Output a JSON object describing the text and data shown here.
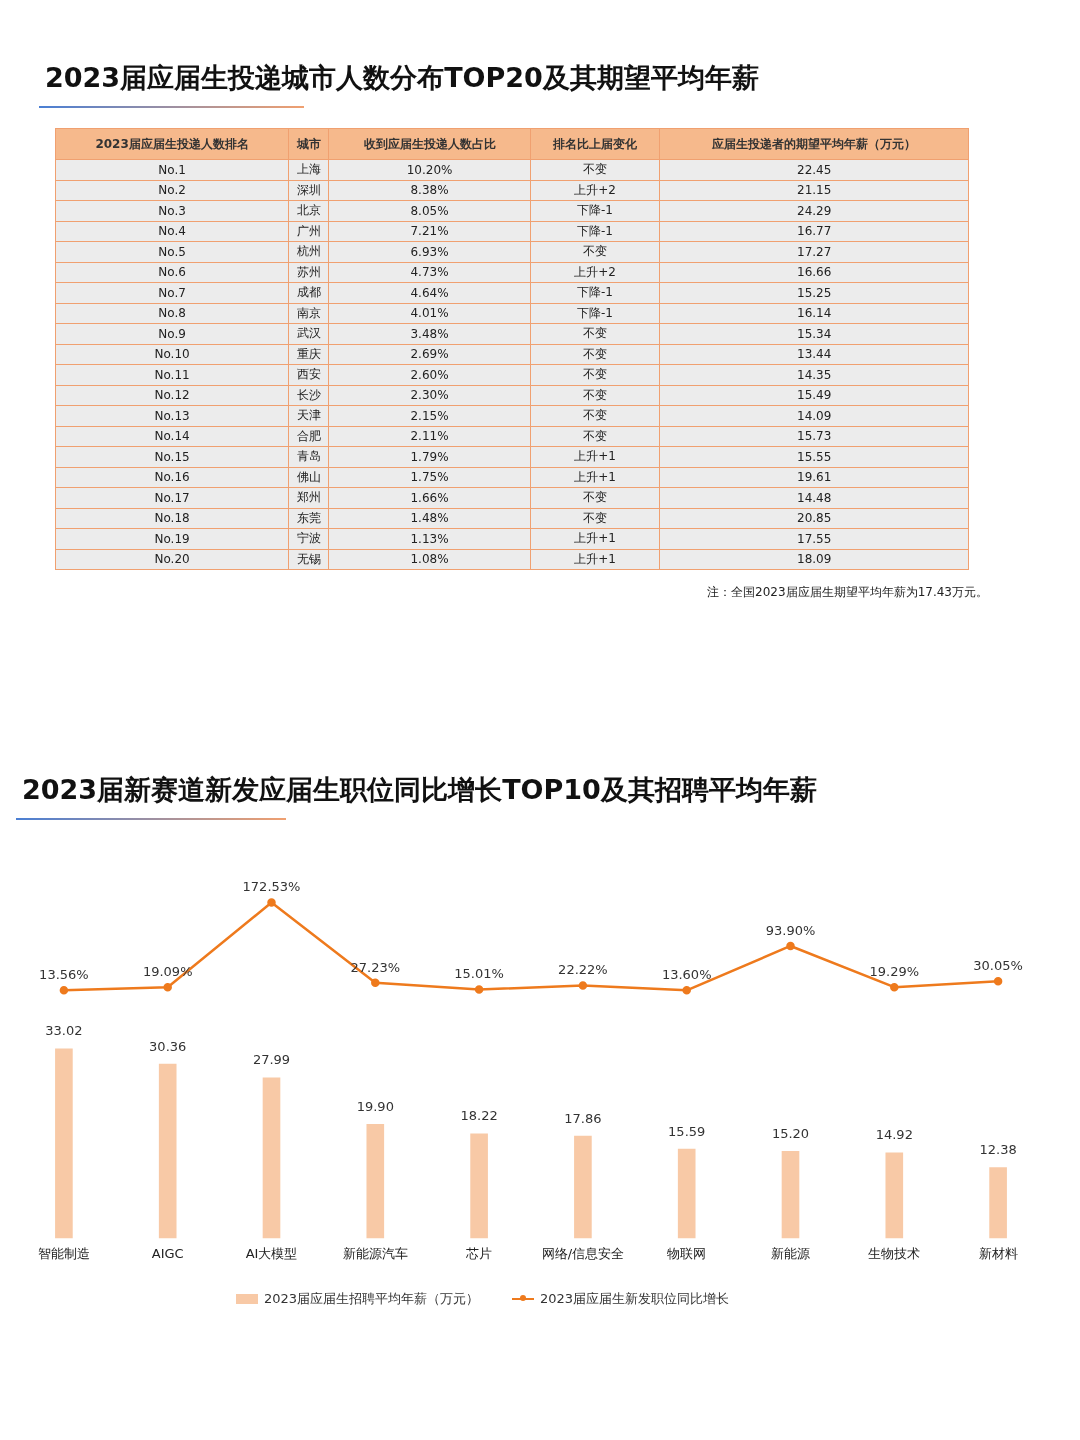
{
  "chart_data": [
    {
      "type": "other",
      "title": "2023届应届生投递城市人数分布TOP20及其期望平均年薪",
      "categories": [
        "2023届应届生投递人数排名",
        "城市",
        "收到应届生投递人数占比",
        "排名比上届变化",
        "应届生投递者的期望平均年薪（万元）"
      ],
      "cell_labels": [
        [
          "No.1",
          "上海",
          "10.20%",
          "不变",
          "22.45"
        ],
        [
          "No.2",
          "深圳",
          "8.38%",
          "上升+2",
          "21.15"
        ],
        [
          "No.3",
          "北京",
          "8.05%",
          "下降-1",
          "24.29"
        ],
        [
          "No.4",
          "广州",
          "7.21%",
          "下降-1",
          "16.77"
        ],
        [
          "No.5",
          "杭州",
          "6.93%",
          "不变",
          "17.27"
        ],
        [
          "No.6",
          "苏州",
          "4.73%",
          "上升+2",
          "16.66"
        ],
        [
          "No.7",
          "成都",
          "4.64%",
          "下降-1",
          "15.25"
        ],
        [
          "No.8",
          "南京",
          "4.01%",
          "下降-1",
          "16.14"
        ],
        [
          "No.9",
          "武汉",
          "3.48%",
          "不变",
          "15.34"
        ],
        [
          "No.10",
          "重庆",
          "2.69%",
          "不变",
          "13.44"
        ],
        [
          "No.11",
          "西安",
          "2.60%",
          "不变",
          "14.35"
        ],
        [
          "No.12",
          "长沙",
          "2.30%",
          "不变",
          "15.49"
        ],
        [
          "No.13",
          "天津",
          "2.15%",
          "不变",
          "14.09"
        ],
        [
          "No.14",
          "合肥",
          "2.11%",
          "不变",
          "15.73"
        ],
        [
          "No.15",
          "青岛",
          "1.79%",
          "上升+1",
          "15.55"
        ],
        [
          "No.16",
          "佛山",
          "1.75%",
          "上升+1",
          "19.61"
        ],
        [
          "No.17",
          "郑州",
          "1.66%",
          "不变",
          "14.48"
        ],
        [
          "No.18",
          "东莞",
          "1.48%",
          "不变",
          "20.85"
        ],
        [
          "No.19",
          "宁波",
          "1.13%",
          "上升+1",
          "17.55"
        ],
        [
          "No.20",
          "无锡",
          "1.08%",
          "上升+1",
          "18.09"
        ]
      ],
      "annotations": [
        "注：全国2023届应届生期望平均年薪为17.43万元。"
      ]
    },
    {
      "type": "line",
      "title": "2023届新赛道新发应届生职位同比增长TOP10及其招聘平均年薪",
      "categories": [
        null,
        null,
        null,
        null,
        null,
        null,
        null,
        null,
        null,
        null
      ],
      "series": [
        {
          "name": "2023届应届生新发职位同比增长",
          "color": "#ee7a1d",
          "values": [
            13.56,
            19.09,
            172.53,
            27.23,
            15.01,
            22.22,
            13.6,
            93.9,
            19.29,
            30.05
          ],
          "value_labels": [
            "13.56%",
            "19.09%",
            "172.53%",
            "27.23%",
            "15.01%",
            "22.22%",
            "13.60%",
            "93.90%",
            "19.29%",
            "30.05%"
          ]
        }
      ],
      "legend": "bottom",
      "grid": false,
      "tick_labels": false,
      "marker": "circle",
      "line_style": "solid"
    },
    {
      "type": "bar",
      "categories": [
        "智能制造",
        "AIGC",
        "AI大模型",
        "新能源汽车",
        "芯片",
        "网络/信息安全",
        "物联网",
        "新能源",
        "生物技术",
        "新材料"
      ],
      "series": [
        {
          "name": "2023届应届生招聘平均年薪（万元）",
          "color": "#f8c9a6",
          "values": [
            33.02,
            30.36,
            27.99,
            19.9,
            18.22,
            17.86,
            15.59,
            15.2,
            14.92,
            12.38
          ],
          "value_labels": [
            "33.02",
            "30.36",
            "27.99",
            "19.90",
            "18.22",
            "17.86",
            "15.59",
            "15.20",
            "14.92",
            "12.38"
          ]
        }
      ],
      "legend": "bottom",
      "grid": false,
      "tick_labels": "x"
    }
  ]
}
